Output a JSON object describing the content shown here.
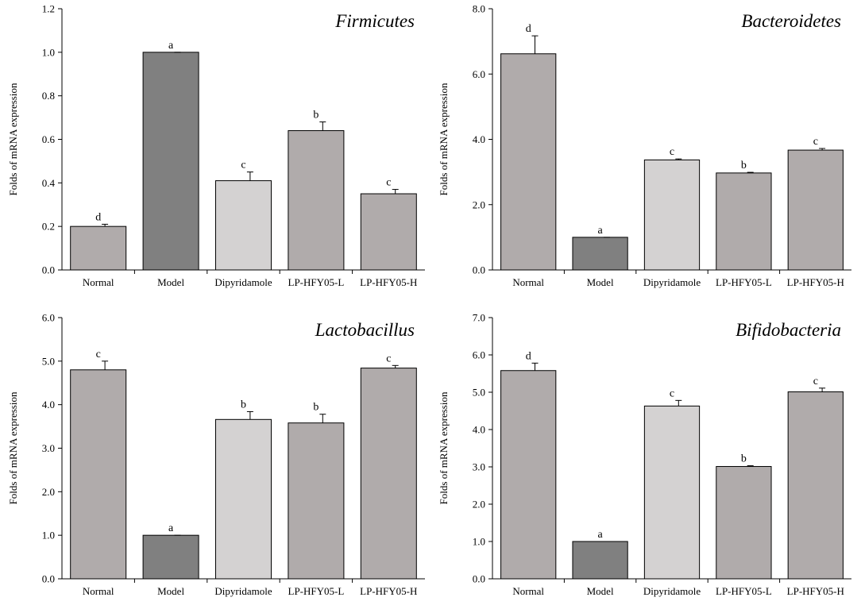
{
  "chart_data": [
    {
      "type": "bar",
      "title": "Firmicutes",
      "ylabel": "Folds of mRNA expression",
      "xlabel": "",
      "categories": [
        "Normal",
        "Model",
        "Dipyridamole",
        "LP-HFY05-L",
        "LP-HFY05-H"
      ],
      "values": [
        0.2,
        1.0,
        0.41,
        0.64,
        0.35
      ],
      "errors": [
        0.01,
        0.0,
        0.04,
        0.04,
        0.02
      ],
      "significance": [
        "d",
        "a",
        "c",
        "b",
        "c"
      ],
      "ylim": [
        0,
        1.2
      ],
      "yticks": [
        "0.0",
        "0.2",
        "0.4",
        "0.6",
        "0.8",
        "1.0",
        "1.2"
      ],
      "grid": false
    },
    {
      "type": "bar",
      "title": "Bacteroidetes",
      "ylabel": "Folds of mRNA expression",
      "xlabel": "",
      "categories": [
        "Normal",
        "Model",
        "Dipyridamole",
        "LP-HFY05-L",
        "LP-HFY05-H"
      ],
      "values": [
        6.62,
        1.0,
        3.37,
        2.97,
        3.67
      ],
      "errors": [
        0.55,
        0.0,
        0.03,
        0.02,
        0.05
      ],
      "significance": [
        "d",
        "a",
        "c",
        "b",
        "c"
      ],
      "ylim": [
        0,
        8.0
      ],
      "yticks": [
        "0.0",
        "2.0",
        "4.0",
        "6.0",
        "8.0"
      ],
      "grid": false
    },
    {
      "type": "bar",
      "title": "Lactobacillus",
      "ylabel": "Folds of mRNA expression",
      "xlabel": "",
      "categories": [
        "Normal",
        "Model",
        "Dipyridamole",
        "LP-HFY05-L",
        "LP-HFY05-H"
      ],
      "values": [
        4.8,
        1.0,
        3.66,
        3.58,
        4.84
      ],
      "errors": [
        0.2,
        0.0,
        0.18,
        0.2,
        0.06
      ],
      "significance": [
        "c",
        "a",
        "b",
        "b",
        "c"
      ],
      "ylim": [
        0,
        6.0
      ],
      "yticks": [
        "0.0",
        "1.0",
        "2.0",
        "3.0",
        "4.0",
        "5.0",
        "6.0"
      ],
      "grid": false
    },
    {
      "type": "bar",
      "title": "Bifidobacteria",
      "ylabel": "Folds of mRNA expression",
      "xlabel": "",
      "categories": [
        "Normal",
        "Model",
        "Dipyridamole",
        "LP-HFY05-L",
        "LP-HFY05-H"
      ],
      "values": [
        5.58,
        1.0,
        4.63,
        3.01,
        5.01
      ],
      "errors": [
        0.2,
        0.0,
        0.15,
        0.02,
        0.1
      ],
      "significance": [
        "d",
        "a",
        "c",
        "b",
        "c"
      ],
      "ylim": [
        0,
        7.0
      ],
      "yticks": [
        "0.0",
        "1.0",
        "2.0",
        "3.0",
        "4.0",
        "5.0",
        "6.0",
        "7.0"
      ],
      "grid": false
    }
  ],
  "bar_colors": [
    "#b0abab",
    "#808080",
    "#d4d2d2",
    "#b0abab",
    "#b0abab"
  ],
  "axis_color": "#000000"
}
